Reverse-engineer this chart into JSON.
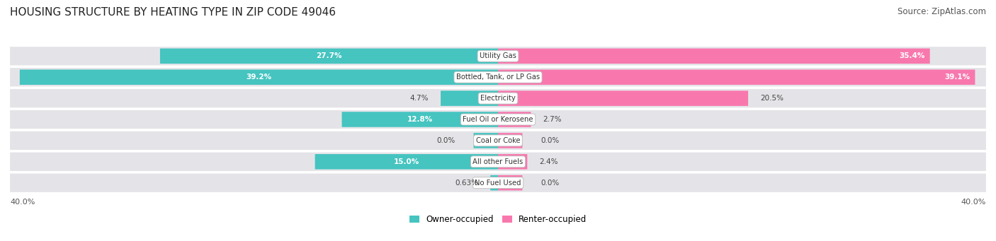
{
  "title": "HOUSING STRUCTURE BY HEATING TYPE IN ZIP CODE 49046",
  "source": "Source: ZipAtlas.com",
  "categories": [
    "Utility Gas",
    "Bottled, Tank, or LP Gas",
    "Electricity",
    "Fuel Oil or Kerosene",
    "Coal or Coke",
    "All other Fuels",
    "No Fuel Used"
  ],
  "owner_values": [
    27.7,
    39.2,
    4.7,
    12.8,
    0.0,
    15.0,
    0.63
  ],
  "renter_values": [
    35.4,
    39.1,
    20.5,
    2.7,
    0.0,
    2.4,
    0.0
  ],
  "owner_color": "#45C4C0",
  "renter_color": "#F878AE",
  "owner_label": "Owner-occupied",
  "renter_label": "Renter-occupied",
  "axis_max": 40.0,
  "background_color": "#ffffff",
  "bar_bg_color": "#e4e4e8",
  "title_fontsize": 11,
  "source_fontsize": 8.5
}
